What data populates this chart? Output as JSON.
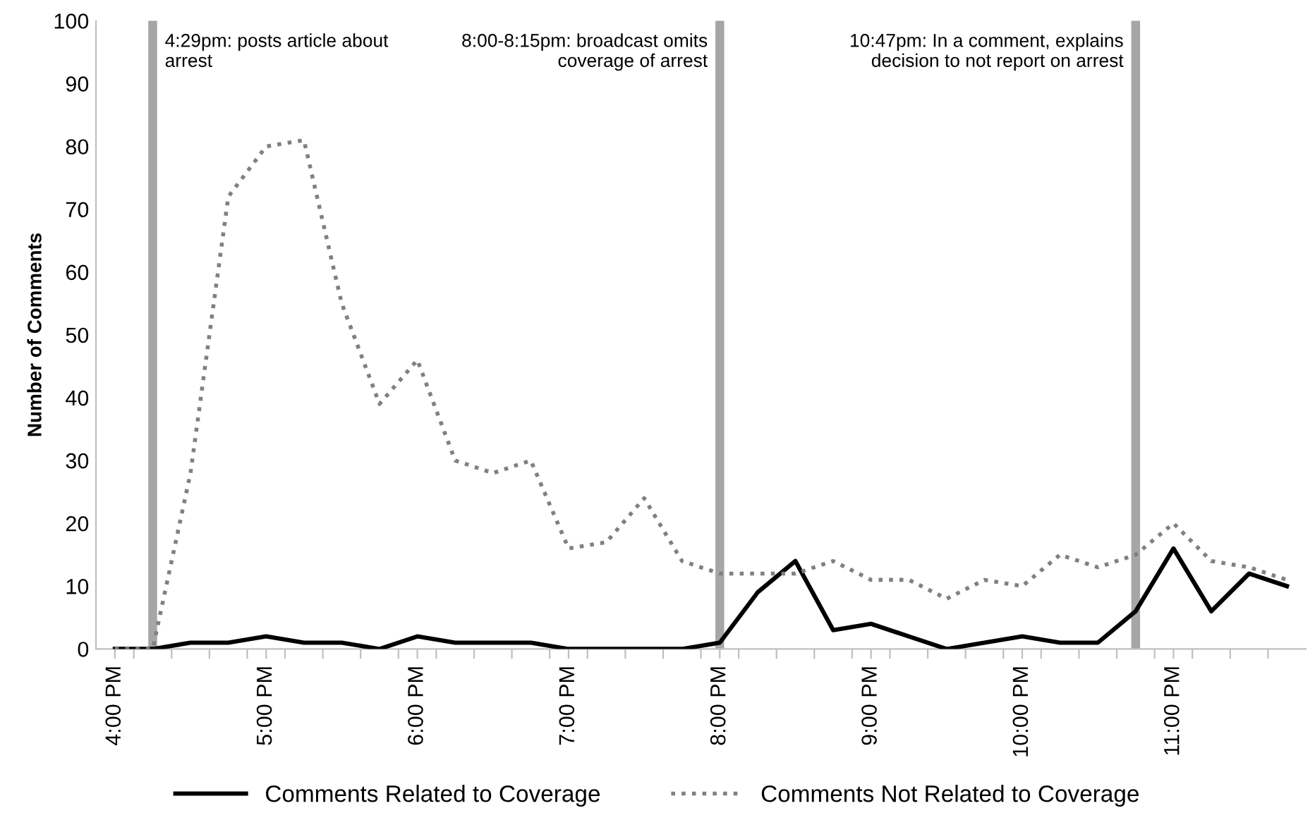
{
  "chart_data": {
    "type": "line",
    "ylabel": "Number of Comments",
    "x": [
      16,
      16.25,
      16.5,
      16.75,
      17,
      17.25,
      17.5,
      17.75,
      18,
      18.25,
      18.5,
      18.75,
      19,
      19.25,
      19.5,
      19.75,
      20,
      20.25,
      20.5,
      20.75,
      21,
      21.25,
      21.5,
      21.75,
      22,
      22.25,
      22.5,
      22.75,
      23,
      23.25,
      23.5,
      23.75
    ],
    "series": [
      {
        "name": "Comments Related to Coverage",
        "color": "#000000",
        "line_style": "solid",
        "values": [
          0,
          0,
          1,
          1,
          2,
          1,
          1,
          0,
          2,
          1,
          1,
          1,
          0,
          0,
          0,
          0,
          1,
          9,
          14,
          3,
          4,
          2,
          0,
          1,
          2,
          1,
          1,
          6,
          16,
          6,
          12,
          10
        ]
      },
      {
        "name": "Comments Not Related to Coverage",
        "color": "#808080",
        "line_style": "dotted",
        "values": [
          0,
          0,
          28,
          72,
          80,
          81,
          55,
          39,
          46,
          30,
          28,
          30,
          16,
          17,
          24,
          14,
          12,
          12,
          12,
          14,
          11,
          11,
          8,
          11,
          10,
          15,
          13,
          15,
          20,
          14,
          13,
          11
        ]
      }
    ],
    "xlim": [
      15.875,
      23.875
    ],
    "xticks": [
      {
        "value": 16,
        "label": "4:00 PM"
      },
      {
        "value": 17,
        "label": "5:00 PM"
      },
      {
        "value": 18,
        "label": "6:00 PM"
      },
      {
        "value": 19,
        "label": "7:00 PM"
      },
      {
        "value": 20,
        "label": "8:00 PM"
      },
      {
        "value": 21,
        "label": "9:00 PM"
      },
      {
        "value": 22,
        "label": "10:00 PM"
      },
      {
        "value": 23,
        "label": "11:00 PM"
      },
      {
        "value": 16.125,
        "label": null
      },
      {
        "value": 16.375,
        "label": null
      },
      {
        "value": 16.625,
        "label": null
      },
      {
        "value": 16.875,
        "label": null
      },
      {
        "value": 17.125,
        "label": null
      },
      {
        "value": 17.375,
        "label": null
      },
      {
        "value": 17.625,
        "label": null
      },
      {
        "value": 17.875,
        "label": null
      },
      {
        "value": 18.125,
        "label": null
      },
      {
        "value": 18.375,
        "label": null
      },
      {
        "value": 18.625,
        "label": null
      },
      {
        "value": 18.875,
        "label": null
      },
      {
        "value": 19.125,
        "label": null
      },
      {
        "value": 19.375,
        "label": null
      },
      {
        "value": 19.625,
        "label": null
      },
      {
        "value": 19.875,
        "label": null
      },
      {
        "value": 20.125,
        "label": null
      },
      {
        "value": 20.375,
        "label": null
      },
      {
        "value": 20.625,
        "label": null
      },
      {
        "value": 20.875,
        "label": null
      },
      {
        "value": 21.125,
        "label": null
      },
      {
        "value": 21.375,
        "label": null
      },
      {
        "value": 21.625,
        "label": null
      },
      {
        "value": 21.875,
        "label": null
      },
      {
        "value": 22.125,
        "label": null
      },
      {
        "value": 22.375,
        "label": null
      },
      {
        "value": 22.625,
        "label": null
      },
      {
        "value": 22.875,
        "label": null
      },
      {
        "value": 23.125,
        "label": null
      },
      {
        "value": 23.375,
        "label": null
      },
      {
        "value": 23.625,
        "label": null
      }
    ],
    "ylim": [
      0,
      100
    ],
    "yticks": [
      0,
      10,
      20,
      30,
      40,
      50,
      60,
      70,
      80,
      90,
      100
    ],
    "ref_lines": [
      {
        "axis": "x",
        "value": 16.25,
        "color": "#a6a6a6"
      },
      {
        "axis": "x",
        "value": 20,
        "color": "#a6a6a6"
      },
      {
        "axis": "x",
        "value": 22.75,
        "color": "#a6a6a6"
      }
    ],
    "annotations": [
      "4:29pm: posts article about arrest",
      "8:00-8:15pm: broadcast omits coverage of arrest",
      "10:47pm: In a comment, explains decision to not report on arrest"
    ],
    "grid": false,
    "legend": "bottom",
    "marker": "none"
  }
}
